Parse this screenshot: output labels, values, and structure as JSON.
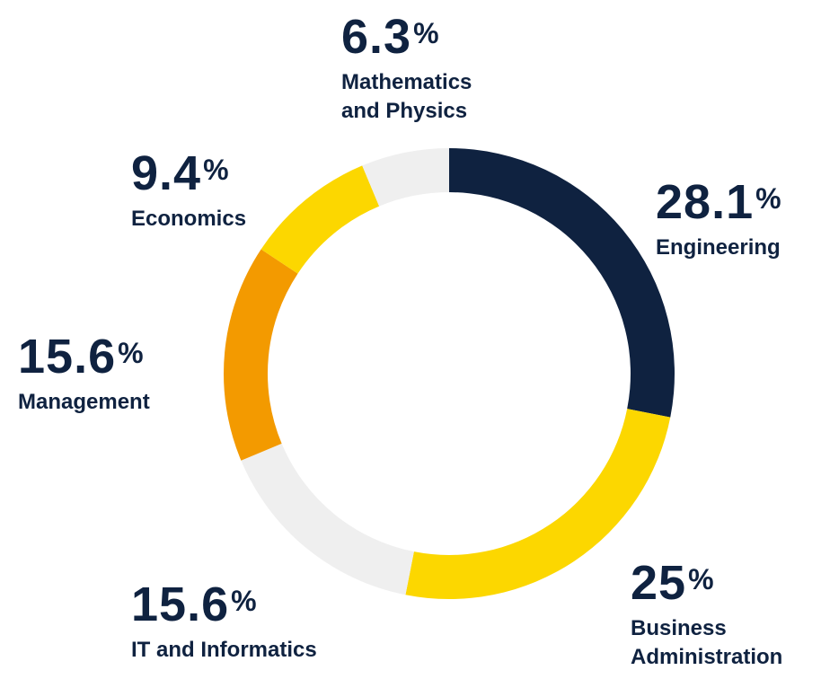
{
  "chart_data": {
    "type": "pie",
    "style": "donut",
    "unit": "%",
    "slices": [
      {
        "label": "Engineering",
        "value": 28.1,
        "display": "28.1",
        "color": "#0f2240"
      },
      {
        "label": "Business Administration",
        "label_lines": [
          "Business",
          "Administration"
        ],
        "value": 25,
        "display": "25",
        "color": "#fcd700"
      },
      {
        "label": "IT and Informatics",
        "value": 15.6,
        "display": "15.6",
        "color": "#efefef"
      },
      {
        "label": "Management",
        "value": 15.6,
        "display": "15.6",
        "color": "#f39a00"
      },
      {
        "label": "Economics",
        "value": 9.4,
        "display": "9.4",
        "color": "#fcd700"
      },
      {
        "label": "Mathematics and Physics",
        "label_lines": [
          "Mathematics",
          "and Physics"
        ],
        "value": 6.3,
        "display": "6.3",
        "color": "#efefef"
      }
    ],
    "start": "12 o'clock",
    "direction": "clockwise",
    "legend": "none"
  }
}
